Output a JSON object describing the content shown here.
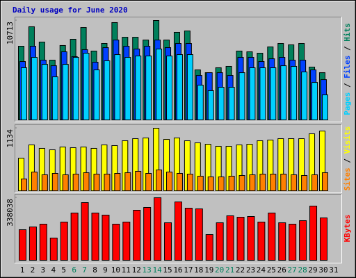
{
  "chart_data": [
    {
      "type": "bar",
      "title": "Daily usage for June 2020",
      "title_color": "#0000c0",
      "ylim": [
        0,
        10713
      ],
      "yticks": [
        10713
      ],
      "legend_separator": " / ",
      "series": [
        {
          "name": "Hits",
          "color": "#00805c",
          "values": [
            7940,
            10040,
            8390,
            6440,
            8020,
            8690,
            9960,
            7420,
            8240,
            10490,
            8910,
            8910,
            8610,
            10713,
            8610,
            9440,
            9590,
            5390,
            5090,
            5620,
            5770,
            7420,
            7340,
            7190,
            7870,
            8240,
            8090,
            8240,
            5690,
            5090,
            null
          ]
        },
        {
          "name": "Files",
          "color": "#0040ff",
          "values": [
            6290,
            7940,
            6440,
            5840,
            7340,
            6820,
            7570,
            6220,
            7790,
            8610,
            7940,
            7640,
            7940,
            8610,
            7790,
            8240,
            8240,
            4790,
            5090,
            5090,
            4790,
            6740,
            6740,
            6290,
            6590,
            6740,
            6440,
            6440,
            5390,
            4340,
            null
          ]
        },
        {
          "name": "Pages",
          "color": "#00d0ff",
          "values": [
            5620,
            6740,
            5990,
            4640,
            5990,
            6740,
            7190,
            5390,
            6370,
            7040,
            6740,
            6890,
            6890,
            7640,
            6890,
            7040,
            7040,
            3750,
            3150,
            3520,
            3520,
            5090,
            5620,
            5620,
            5620,
            5840,
            5770,
            5170,
            4040,
            2700,
            null
          ]
        }
      ]
    },
    {
      "type": "bar",
      "ylim": [
        0,
        1134
      ],
      "yticks": [
        1134
      ],
      "legend_separator": " / ",
      "series": [
        {
          "name": "Visits",
          "color": "#ffff00",
          "values": [
            592,
            832,
            769,
            743,
            794,
            781,
            794,
            769,
            832,
            819,
            907,
            945,
            958,
            1134,
            932,
            958,
            907,
            869,
            844,
            806,
            806,
            832,
            844,
            907,
            920,
            945,
            945,
            945,
            1033,
            1084,
            null
          ]
        },
        {
          "name": "Sites",
          "color": "#ff8000",
          "values": [
            214,
            340,
            290,
            315,
            290,
            302,
            328,
            302,
            302,
            315,
            328,
            353,
            315,
            378,
            340,
            315,
            302,
            265,
            252,
            252,
            265,
            277,
            290,
            302,
            302,
            302,
            290,
            277,
            290,
            328,
            null
          ]
        }
      ]
    },
    {
      "type": "bar",
      "ylim": [
        0,
        338038
      ],
      "yticks": [
        338038
      ],
      "categories": [
        "1",
        "2",
        "3",
        "4",
        "5",
        "6",
        "7",
        "8",
        "9",
        "10",
        "11",
        "12",
        "13",
        "14",
        "15",
        "16",
        "17",
        "18",
        "19",
        "20",
        "21",
        "22",
        "23",
        "24",
        "25",
        "26",
        "27",
        "28",
        "29",
        "30",
        "31"
      ],
      "category_colors": [
        "#000000",
        "#000000",
        "#000000",
        "#000000",
        "#000000",
        "#00805c",
        "#00805c",
        "#000000",
        "#000000",
        "#000000",
        "#000000",
        "#000000",
        "#00805c",
        "#00805c",
        "#000000",
        "#000000",
        "#000000",
        "#000000",
        "#000000",
        "#00805c",
        "#00805c",
        "#000000",
        "#000000",
        "#000000",
        "#000000",
        "#000000",
        "#00805c",
        "#00805c",
        "#000000",
        "#000000",
        "#000000"
      ],
      "series": [
        {
          "name": "KBytes",
          "color": "#ff0000",
          "values": [
            165260,
            180290,
            195310,
            120190,
            206580,
            255410,
            311750,
            255410,
            244140,
            195310,
            206580,
            270430,
            285460,
            338038,
            202820,
            315500,
            281700,
            277940,
            138970,
            202820,
            240380,
            232870,
            236630,
            206580,
            255410,
            202820,
            195310,
            214090,
            292970,
            229120,
            null
          ]
        }
      ]
    }
  ]
}
